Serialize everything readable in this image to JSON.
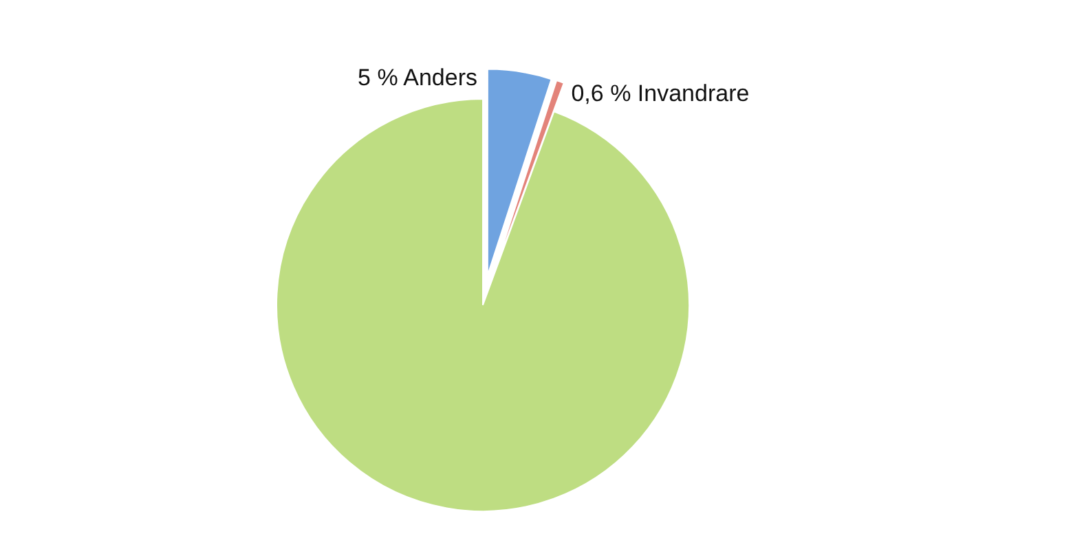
{
  "chart_data": {
    "type": "pie",
    "categories": [
      null,
      null,
      null
    ],
    "values": [
      5,
      0.6,
      94.4
    ],
    "colors": [
      "#6fa3e0",
      "#e3837a",
      "#bedd82"
    ],
    "value_labels": [
      "5 % Anders",
      "0,6 % Invandrare",
      null
    ]
  }
}
